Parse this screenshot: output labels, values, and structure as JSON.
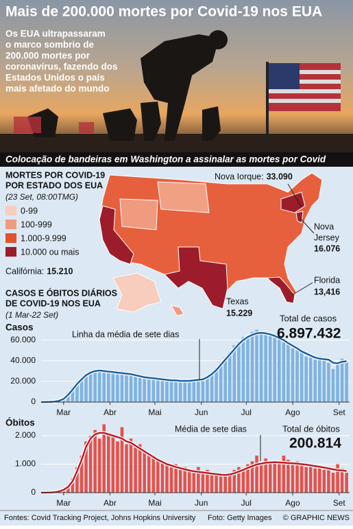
{
  "header": {
    "title": "Mais de 200.000 mortes por Covid-19 nos EUA",
    "subtitle_lines": [
      "Os EUA ultrapassaram",
      "o marco sombrio de",
      "200.000 mortes por",
      "coronavírus, fazendo dos",
      "Estados Unidos o país",
      "mais afetado do mundo"
    ]
  },
  "photo": {
    "caption": "Colocação de bandeiras  em Washington a assinalar as mortes por Covid"
  },
  "map": {
    "title_lines": [
      "MORTES POR COVID-19",
      "POR ESTADO DOS EUA"
    ],
    "date": "(23 Set, 08:00TMG)",
    "legend": [
      {
        "label": "0-99",
        "color": "#f7cdbd"
      },
      {
        "label": "100-999",
        "color": "#f09a80"
      },
      {
        "label": "1.000-9.999",
        "color": "#e2502e"
      },
      {
        "label": "10.000 ou mais",
        "color": "#9c1c2b"
      }
    ],
    "callouts": [
      {
        "name": "Nova Iorque:",
        "value": "33.090"
      },
      {
        "name": "Nova Jersey",
        "value": "16.076"
      },
      {
        "name": "Florida",
        "value": "13,416"
      },
      {
        "name": "Texas",
        "value": "15.229"
      },
      {
        "name": "Califórnia:",
        "value": "15.210"
      }
    ]
  },
  "section": {
    "title_lines": [
      "CASOS E ÓBITOS DIÁRIOS",
      "DE COVID-19 NOS EUA"
    ],
    "date": "(1 Mar-22 Set)"
  },
  "chart_data": [
    {
      "type": "bar",
      "title": "Casos",
      "annotation": "Linha da média de sete dias",
      "total_label": "Total de casos",
      "total_value": "6.897.432",
      "bar_color": "#7fb3e0",
      "line_color": "#1b5f9c",
      "grid": true,
      "xlim": [
        0,
        206
      ],
      "ylim": [
        0,
        75000
      ],
      "yticks": [
        0,
        {
          "value": 20000,
          "label": "20.000"
        },
        {
          "value": 40000,
          "label": "40.000"
        },
        {
          "value": 60000,
          "label": "60.000"
        }
      ],
      "xticks": [
        {
          "value": 15,
          "label": "Mar"
        },
        {
          "value": 46,
          "label": "Abr"
        },
        {
          "value": 76,
          "label": "Mai"
        },
        {
          "value": 107,
          "label": "Jun"
        },
        {
          "value": 137,
          "label": "Jul"
        },
        {
          "value": 168,
          "label": "Ago"
        },
        {
          "value": 199,
          "label": "Set"
        }
      ],
      "x": [
        0,
        3,
        6,
        9,
        12,
        15,
        18,
        21,
        24,
        27,
        30,
        33,
        36,
        39,
        42,
        45,
        48,
        51,
        54,
        57,
        60,
        63,
        66,
        69,
        72,
        75,
        78,
        81,
        84,
        87,
        90,
        93,
        96,
        99,
        102,
        105,
        108,
        111,
        114,
        117,
        120,
        123,
        126,
        129,
        132,
        135,
        138,
        141,
        144,
        147,
        150,
        153,
        156,
        159,
        162,
        165,
        168,
        171,
        174,
        177,
        180,
        183,
        186,
        189,
        192,
        195,
        198,
        201,
        204
      ],
      "values": [
        0,
        50,
        200,
        600,
        1500,
        4000,
        9000,
        14000,
        19000,
        22000,
        27000,
        30000,
        31000,
        30000,
        31000,
        29000,
        30000,
        28000,
        29000,
        27000,
        28000,
        26000,
        25000,
        24000,
        23000,
        23000,
        24000,
        22000,
        21000,
        20000,
        22000,
        20000,
        21000,
        20000,
        21000,
        22000,
        21000,
        25000,
        27000,
        33000,
        38000,
        43000,
        48000,
        55000,
        58000,
        63000,
        62000,
        68000,
        70000,
        66000,
        68000,
        64000,
        66000,
        62000,
        58000,
        56000,
        52000,
        50000,
        48000,
        44000,
        43000,
        41000,
        44000,
        42000,
        38000,
        32000,
        39000,
        42000,
        38000
      ],
      "average": [
        0,
        20,
        100,
        400,
        1200,
        3000,
        7000,
        12000,
        17500,
        22000,
        26000,
        28500,
        30000,
        30500,
        30000,
        29500,
        29000,
        28500,
        28000,
        27500,
        27000,
        26000,
        25000,
        24000,
        23500,
        23000,
        22500,
        22000,
        21500,
        21000,
        21000,
        20500,
        20500,
        20500,
        21000,
        21500,
        22000,
        24000,
        27000,
        31000,
        36000,
        41000,
        46000,
        51000,
        56000,
        60000,
        63000,
        65000,
        66500,
        67000,
        66500,
        65500,
        64000,
        62000,
        60000,
        57000,
        54500,
        52000,
        49000,
        47000,
        45000,
        43000,
        42000,
        41500,
        41000,
        38000,
        37500,
        39000,
        39500
      ]
    },
    {
      "type": "bar",
      "title": "Óbitos",
      "annotation": "Média de sete dias",
      "total_label": "Total de óbitos",
      "total_value": "200.814",
      "bar_color": "#e4524c",
      "line_color": "#b51d26",
      "grid": true,
      "xlim": [
        0,
        206
      ],
      "ylim": [
        0,
        2700
      ],
      "yticks": [
        0,
        {
          "value": 1000,
          "label": "1.000"
        },
        {
          "value": 2000,
          "label": "2.000"
        }
      ],
      "xticks": [
        {
          "value": 15,
          "label": "Mar"
        },
        {
          "value": 46,
          "label": "Abr"
        },
        {
          "value": 76,
          "label": "Mai"
        },
        {
          "value": 107,
          "label": "Jun"
        },
        {
          "value": 137,
          "label": "Jul"
        },
        {
          "value": 168,
          "label": "Ago"
        },
        {
          "value": 199,
          "label": "Set"
        }
      ],
      "x": [
        0,
        3,
        6,
        9,
        12,
        15,
        18,
        21,
        24,
        27,
        30,
        33,
        36,
        39,
        42,
        45,
        48,
        51,
        54,
        57,
        60,
        63,
        66,
        69,
        72,
        75,
        78,
        81,
        84,
        87,
        90,
        93,
        96,
        99,
        102,
        105,
        108,
        111,
        114,
        117,
        120,
        123,
        126,
        129,
        132,
        135,
        138,
        141,
        144,
        147,
        150,
        153,
        156,
        159,
        162,
        165,
        168,
        171,
        174,
        177,
        180,
        183,
        186,
        189,
        192,
        195,
        198,
        201,
        204
      ],
      "values": [
        0,
        0,
        5,
        20,
        50,
        120,
        250,
        500,
        900,
        1300,
        1800,
        2000,
        2200,
        1900,
        2400,
        2100,
        2000,
        1800,
        2300,
        1700,
        1900,
        1600,
        1700,
        1500,
        1400,
        1300,
        1200,
        1100,
        1000,
        900,
        1000,
        850,
        900,
        800,
        750,
        900,
        700,
        800,
        650,
        700,
        600,
        650,
        700,
        800,
        900,
        850,
        1000,
        1100,
        1300,
        1000,
        1200,
        1100,
        1050,
        1000,
        1300,
        1150,
        1000,
        1100,
        1050,
        900,
        1000,
        850,
        950,
        800,
        900,
        700,
        1000,
        850,
        700
      ],
      "average": [
        0,
        0,
        3,
        15,
        40,
        100,
        200,
        400,
        750,
        1150,
        1600,
        1900,
        2050,
        2100,
        2100,
        2050,
        2000,
        1950,
        1900,
        1800,
        1750,
        1650,
        1550,
        1450,
        1350,
        1250,
        1150,
        1080,
        1000,
        950,
        900,
        860,
        820,
        780,
        750,
        730,
        710,
        690,
        670,
        650,
        630,
        620,
        640,
        680,
        740,
        800,
        870,
        930,
        990,
        1020,
        1050,
        1060,
        1070,
        1060,
        1050,
        1040,
        1030,
        1020,
        1000,
        980,
        960,
        930,
        910,
        880,
        850,
        820,
        790,
        780,
        760
      ]
    }
  ],
  "footer": {
    "sources": "Fontes: Covid Tracking Project, Johns Hopkins University",
    "photo_credit": "Foto: Getty Images",
    "copyright": "© GRAPHIC NEWS"
  }
}
